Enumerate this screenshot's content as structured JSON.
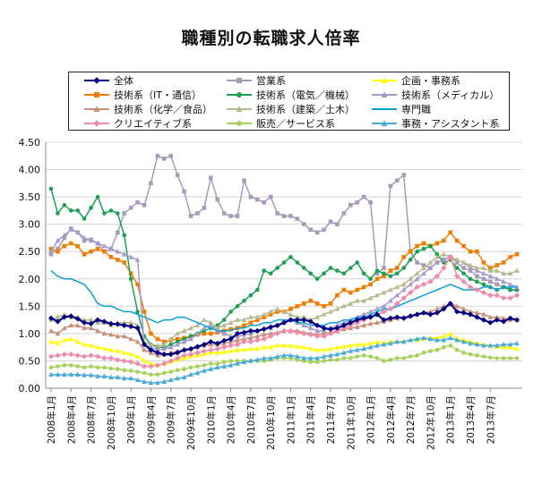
{
  "chart_data": {
    "type": "line",
    "title": "職種別の転職求人倍率",
    "xlabel": "",
    "ylabel": "",
    "ylim": [
      0,
      4.5
    ],
    "yticks": [
      "0.00",
      "0.50",
      "1.00",
      "1.50",
      "2.00",
      "2.50",
      "3.00",
      "3.50",
      "4.00",
      "4.50"
    ],
    "grid": true,
    "legend_position": "top",
    "x_tick_labels": [
      "2008年1月",
      "2008年4月",
      "2008年7月",
      "2008年10月",
      "2009年1月",
      "2009年4月",
      "2009年7月",
      "2009年10月",
      "2010年1月",
      "2010年4月",
      "2010年7月",
      "2010年10月",
      "2011年1月",
      "2011年4月",
      "2011年7月",
      "2011年10月",
      "2012年1月",
      "2012年4月",
      "2012年7月",
      "2012年10月",
      "2013年1月",
      "2013年4月",
      "2013年7月"
    ],
    "series": [
      {
        "name": "全体",
        "color": "#000080",
        "marker": "diamond",
        "values": [
          1.28,
          1.22,
          1.3,
          1.32,
          1.27,
          1.2,
          1.18,
          1.25,
          1.22,
          1.18,
          1.17,
          1.15,
          1.13,
          1.1,
          0.8,
          0.7,
          0.65,
          0.62,
          0.62,
          0.65,
          0.7,
          0.72,
          0.76,
          0.8,
          0.85,
          0.82,
          0.87,
          0.9,
          1.0,
          1.02,
          1.05,
          1.05,
          1.08,
          1.12,
          1.15,
          1.2,
          1.25,
          1.25,
          1.25,
          1.22,
          1.15,
          1.1,
          1.08,
          1.1,
          1.15,
          1.2,
          1.25,
          1.28,
          1.3,
          1.35,
          1.25,
          1.28,
          1.3,
          1.28,
          1.32,
          1.35,
          1.38,
          1.35,
          1.38,
          1.45,
          1.55,
          1.4,
          1.38,
          1.35,
          1.3,
          1.25,
          1.2,
          1.25,
          1.22,
          1.28,
          1.25
        ]
      },
      {
        "name": "営業系",
        "color": "#a89ab9",
        "marker": "square",
        "values": [
          2.45,
          2.55,
          2.75,
          2.92,
          2.85,
          2.7,
          2.72,
          2.65,
          2.5,
          2.55,
          2.85,
          3.2,
          3.3,
          3.4,
          3.35,
          3.75,
          4.25,
          4.2,
          4.25,
          3.9,
          3.6,
          3.15,
          3.2,
          3.3,
          3.85,
          3.45,
          3.2,
          3.15,
          3.15,
          3.8,
          3.5,
          3.45,
          3.4,
          3.5,
          3.2,
          3.15,
          3.15,
          3.1,
          3.0,
          2.9,
          2.85,
          2.9,
          3.05,
          3.0,
          3.2,
          3.35,
          3.4,
          3.5,
          3.4,
          2.1,
          2.2,
          3.7,
          3.8,
          3.9,
          2.5,
          2.3,
          2.25,
          2.2,
          2.3,
          2.35,
          2.4,
          2.3,
          2.2,
          2.15,
          2.05,
          2.0,
          1.95,
          1.9,
          1.85,
          1.8,
          1.8
        ]
      },
      {
        "name": "企画・事務系",
        "color": "#ffff00",
        "marker": "triangle",
        "values": [
          0.85,
          0.82,
          0.88,
          0.9,
          0.85,
          0.8,
          0.78,
          0.75,
          0.72,
          0.7,
          0.68,
          0.65,
          0.62,
          0.58,
          0.5,
          0.45,
          0.42,
          0.45,
          0.48,
          0.52,
          0.55,
          0.58,
          0.6,
          0.62,
          0.65,
          0.65,
          0.66,
          0.68,
          0.7,
          0.7,
          0.72,
          0.72,
          0.75,
          0.75,
          0.78,
          0.78,
          0.78,
          0.76,
          0.75,
          0.72,
          0.7,
          0.7,
          0.72,
          0.74,
          0.76,
          0.78,
          0.8,
          0.8,
          0.82,
          0.85,
          0.82,
          0.85,
          0.85,
          0.86,
          0.88,
          0.88,
          0.9,
          0.92,
          0.92,
          0.95,
          1.0,
          0.9,
          0.88,
          0.85,
          0.82,
          0.8,
          0.78,
          0.76,
          0.75,
          0.75,
          0.72
        ]
      },
      {
        "name": "技術系（IT・通信）",
        "color": "#f07c00",
        "marker": "square",
        "values": [
          2.55,
          2.5,
          2.6,
          2.65,
          2.6,
          2.45,
          2.5,
          2.55,
          2.5,
          2.4,
          2.35,
          2.3,
          2.1,
          1.9,
          1.4,
          1.0,
          0.9,
          0.85,
          0.88,
          0.9,
          0.92,
          0.95,
          0.98,
          1.0,
          1.0,
          1.02,
          1.05,
          1.08,
          1.1,
          1.15,
          1.2,
          1.25,
          1.3,
          1.35,
          1.4,
          1.4,
          1.45,
          1.5,
          1.55,
          1.6,
          1.55,
          1.5,
          1.55,
          1.7,
          1.8,
          1.75,
          1.8,
          1.85,
          1.9,
          2.0,
          2.05,
          2.15,
          2.2,
          2.4,
          2.5,
          2.6,
          2.65,
          2.6,
          2.65,
          2.7,
          2.85,
          2.7,
          2.6,
          2.5,
          2.5,
          2.3,
          2.2,
          2.25,
          2.3,
          2.4,
          2.45
        ]
      },
      {
        "name": "技術系（電気／機械）",
        "color": "#1aa050",
        "marker": "circle",
        "values": [
          3.65,
          3.2,
          3.35,
          3.25,
          3.25,
          3.1,
          3.3,
          3.5,
          3.2,
          3.25,
          3.2,
          2.8,
          2.0,
          1.4,
          0.95,
          0.8,
          0.75,
          0.75,
          0.8,
          0.85,
          0.9,
          0.95,
          1.0,
          1.05,
          1.1,
          1.15,
          1.25,
          1.4,
          1.5,
          1.6,
          1.7,
          1.8,
          2.15,
          2.1,
          2.2,
          2.3,
          2.4,
          2.3,
          2.2,
          2.1,
          2.0,
          2.1,
          2.2,
          2.15,
          2.1,
          2.2,
          2.3,
          2.1,
          2.0,
          2.15,
          2.1,
          2.05,
          2.1,
          2.2,
          2.35,
          2.5,
          2.55,
          2.6,
          2.45,
          2.3,
          2.35,
          2.2,
          2.1,
          2.0,
          1.95,
          1.9,
          1.85,
          1.8,
          1.85,
          1.8,
          1.8
        ]
      },
      {
        "name": "技術系（メディカル）",
        "color": "#a59ac8",
        "marker": "triangle",
        "values": [
          2.5,
          2.7,
          2.8,
          2.9,
          2.85,
          2.75,
          2.7,
          2.65,
          2.6,
          2.55,
          2.5,
          2.45,
          2.4,
          2.35,
          0.8,
          0.75,
          0.7,
          0.72,
          0.75,
          0.8,
          0.85,
          0.9,
          1.0,
          1.1,
          1.15,
          1.05,
          1.0,
          0.95,
          0.95,
          0.98,
          1.0,
          1.05,
          1.1,
          1.1,
          1.15,
          1.2,
          1.25,
          1.2,
          1.15,
          1.1,
          1.05,
          1.05,
          1.1,
          1.15,
          1.2,
          1.25,
          1.3,
          1.35,
          1.4,
          1.45,
          1.5,
          1.6,
          1.7,
          1.8,
          1.9,
          2.0,
          2.1,
          2.2,
          2.3,
          2.35,
          2.4,
          2.35,
          2.3,
          2.2,
          2.15,
          2.1,
          2.05,
          2.0,
          1.95,
          1.9,
          1.85
        ]
      },
      {
        "name": "技術系（化学／食品）",
        "color": "#c8907a",
        "marker": "triangle",
        "values": [
          1.05,
          1.0,
          1.1,
          1.15,
          1.15,
          1.1,
          1.1,
          1.05,
          1.0,
          0.98,
          0.95,
          0.95,
          0.9,
          0.85,
          0.7,
          0.65,
          0.6,
          0.62,
          0.65,
          0.68,
          0.7,
          0.72,
          0.75,
          0.78,
          0.8,
          0.8,
          0.82,
          0.85,
          0.88,
          0.9,
          0.92,
          0.95,
          0.98,
          1.0,
          1.02,
          1.05,
          1.05,
          1.05,
          1.02,
          1.0,
          0.98,
          1.0,
          1.02,
          1.05,
          1.08,
          1.1,
          1.12,
          1.15,
          1.18,
          1.2,
          1.22,
          1.25,
          1.28,
          1.3,
          1.32,
          1.35,
          1.38,
          1.4,
          1.45,
          1.5,
          1.55,
          1.5,
          1.45,
          1.4,
          1.38,
          1.35,
          1.3,
          1.3,
          1.28,
          1.25,
          1.25
        ]
      },
      {
        "name": "技術系（建築／土木）",
        "color": "#b8b890",
        "marker": "triangle",
        "values": [
          1.25,
          1.3,
          1.35,
          1.3,
          1.3,
          1.25,
          1.25,
          1.2,
          1.2,
          1.15,
          1.2,
          1.2,
          1.2,
          1.15,
          0.85,
          0.8,
          0.78,
          0.8,
          0.9,
          1.0,
          1.05,
          1.1,
          1.15,
          1.25,
          1.2,
          1.1,
          1.15,
          1.2,
          1.25,
          1.25,
          1.3,
          1.3,
          1.35,
          1.4,
          1.45,
          1.4,
          1.35,
          1.3,
          1.3,
          1.25,
          1.3,
          1.35,
          1.4,
          1.45,
          1.5,
          1.55,
          1.6,
          1.6,
          1.65,
          1.7,
          1.75,
          1.8,
          1.85,
          1.9,
          2.0,
          2.1,
          2.2,
          2.3,
          2.4,
          2.45,
          2.4,
          2.35,
          2.3,
          2.25,
          2.2,
          2.2,
          2.15,
          2.15,
          2.1,
          2.1,
          2.15
        ]
      },
      {
        "name": "専門職",
        "color": "#0aa0d8",
        "marker": "none",
        "values": [
          2.15,
          2.05,
          2.0,
          2.0,
          1.95,
          1.9,
          1.75,
          1.55,
          1.5,
          1.5,
          1.45,
          1.4,
          1.4,
          1.35,
          1.3,
          1.25,
          1.2,
          1.25,
          1.25,
          1.3,
          1.3,
          1.25,
          1.2,
          1.15,
          1.1,
          1.05,
          1.05,
          1.05,
          1.1,
          1.1,
          1.15,
          1.15,
          1.2,
          1.2,
          1.25,
          1.25,
          1.25,
          1.2,
          1.2,
          1.15,
          1.15,
          1.15,
          1.2,
          1.2,
          1.25,
          1.25,
          1.3,
          1.3,
          1.35,
          1.4,
          1.45,
          1.45,
          1.5,
          1.55,
          1.6,
          1.65,
          1.7,
          1.75,
          1.8,
          1.85,
          1.9,
          1.85,
          1.8,
          1.8,
          1.8,
          1.85,
          1.85,
          1.8,
          1.85,
          1.85,
          1.85
        ]
      },
      {
        "name": "クリエイティブ系",
        "color": "#f08aa8",
        "marker": "diamond",
        "values": [
          0.58,
          0.6,
          0.62,
          0.62,
          0.6,
          0.58,
          0.6,
          0.58,
          0.55,
          0.55,
          0.52,
          0.5,
          0.48,
          0.45,
          0.4,
          0.4,
          0.42,
          0.45,
          0.5,
          0.55,
          0.6,
          0.62,
          0.65,
          0.68,
          0.7,
          0.72,
          0.75,
          0.78,
          0.8,
          0.85,
          0.85,
          0.88,
          0.9,
          0.95,
          1.0,
          1.05,
          1.05,
          1.02,
          1.0,
          0.98,
          0.95,
          0.95,
          1.0,
          1.05,
          1.1,
          1.15,
          1.2,
          1.25,
          1.3,
          1.35,
          1.4,
          1.45,
          1.55,
          1.65,
          1.75,
          1.85,
          1.9,
          1.95,
          2.05,
          2.2,
          2.4,
          2.05,
          1.95,
          1.85,
          1.8,
          1.75,
          1.7,
          1.7,
          1.65,
          1.65,
          1.7
        ]
      },
      {
        "name": "販売／サービス系",
        "color": "#a6d25a",
        "marker": "circle",
        "values": [
          0.38,
          0.4,
          0.42,
          0.42,
          0.4,
          0.38,
          0.4,
          0.38,
          0.38,
          0.36,
          0.35,
          0.33,
          0.32,
          0.3,
          0.28,
          0.25,
          0.25,
          0.28,
          0.3,
          0.33,
          0.35,
          0.38,
          0.4,
          0.42,
          0.45,
          0.45,
          0.48,
          0.5,
          0.5,
          0.5,
          0.5,
          0.5,
          0.5,
          0.52,
          0.55,
          0.55,
          0.55,
          0.52,
          0.5,
          0.48,
          0.48,
          0.5,
          0.52,
          0.52,
          0.55,
          0.55,
          0.58,
          0.6,
          0.58,
          0.55,
          0.5,
          0.52,
          0.55,
          0.55,
          0.58,
          0.6,
          0.65,
          0.68,
          0.7,
          0.75,
          0.78,
          0.7,
          0.65,
          0.62,
          0.6,
          0.58,
          0.56,
          0.55,
          0.55,
          0.55,
          0.55
        ]
      },
      {
        "name": "事務・アシスタント系",
        "color": "#4aaad8",
        "marker": "triangle",
        "values": [
          0.25,
          0.25,
          0.25,
          0.25,
          0.25,
          0.24,
          0.24,
          0.22,
          0.22,
          0.2,
          0.2,
          0.18,
          0.18,
          0.15,
          0.12,
          0.1,
          0.1,
          0.12,
          0.15,
          0.18,
          0.2,
          0.25,
          0.28,
          0.32,
          0.35,
          0.38,
          0.4,
          0.42,
          0.45,
          0.48,
          0.5,
          0.52,
          0.55,
          0.55,
          0.58,
          0.6,
          0.6,
          0.58,
          0.55,
          0.55,
          0.55,
          0.58,
          0.6,
          0.62,
          0.65,
          0.68,
          0.7,
          0.72,
          0.75,
          0.78,
          0.8,
          0.82,
          0.85,
          0.85,
          0.88,
          0.9,
          0.92,
          0.9,
          0.88,
          0.88,
          0.92,
          0.88,
          0.85,
          0.82,
          0.8,
          0.78,
          0.78,
          0.78,
          0.8,
          0.8,
          0.82
        ]
      }
    ]
  }
}
